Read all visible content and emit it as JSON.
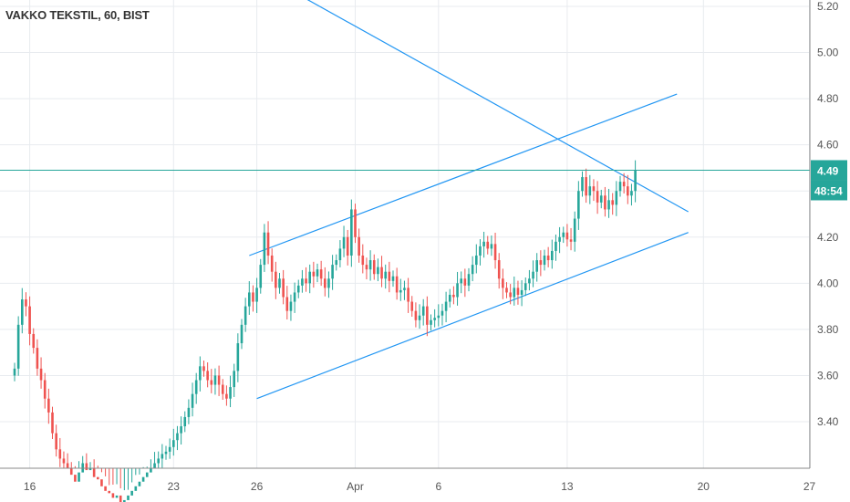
{
  "chart_data": {
    "type": "candlestick",
    "title": "VAKKO TEKSTIL, 60, BIST",
    "ylim": [
      3.2,
      5.22
    ],
    "price_axis": {
      "ticks": [
        "5.20",
        "5.00",
        "4.80",
        "4.60",
        "4.20",
        "4.00",
        "3.80",
        "3.60",
        "3.40"
      ],
      "tick_values": [
        5.2,
        5.0,
        4.8,
        4.6,
        4.2,
        4.0,
        3.8,
        3.6,
        3.4
      ]
    },
    "time_axis": {
      "ticks": [
        "16",
        "23",
        "26",
        "Apr",
        "6",
        "13",
        "20",
        "27"
      ],
      "tick_index": [
        4,
        42,
        64,
        90,
        112,
        146,
        182,
        210
      ]
    },
    "last_price": {
      "label": "4.49",
      "value": 4.49
    },
    "countdown": {
      "label": "48:54"
    },
    "colors": {
      "up": "#26a69a",
      "down": "#ef5350",
      "trendline": "#2196f3",
      "grid": "#e8ebef",
      "price_line": "#26a69a"
    },
    "closes": [
      3.63,
      3.82,
      3.93,
      3.9,
      3.78,
      3.72,
      3.63,
      3.58,
      3.5,
      3.44,
      3.35,
      3.28,
      3.24,
      3.22,
      3.2,
      3.17,
      3.14,
      3.18,
      3.22,
      3.19,
      3.2,
      3.16,
      3.15,
      3.12,
      3.1,
      3.09,
      3.07,
      3.08,
      3.05,
      3.06,
      3.08,
      3.1,
      3.12,
      3.14,
      3.16,
      3.18,
      3.2,
      3.22,
      3.24,
      3.26,
      3.27,
      3.29,
      3.32,
      3.35,
      3.38,
      3.42,
      3.46,
      3.52,
      3.58,
      3.64,
      3.62,
      3.58,
      3.56,
      3.6,
      3.56,
      3.52,
      3.5,
      3.55,
      3.62,
      3.74,
      3.82,
      3.9,
      3.96,
      3.92,
      3.98,
      4.08,
      4.22,
      4.12,
      4.05,
      3.98,
      4.02,
      3.94,
      3.88,
      3.92,
      3.96,
      3.99,
      4.02,
      4.0,
      4.05,
      4.03,
      4.06,
      4.02,
      3.98,
      4.02,
      4.08,
      4.1,
      4.15,
      4.2,
      4.12,
      4.32,
      4.2,
      4.12,
      4.08,
      4.06,
      4.1,
      4.04,
      4.07,
      4.02,
      4.05,
      4.01,
      4.03,
      3.96,
      3.97,
      3.98,
      3.92,
      3.88,
      3.84,
      3.86,
      3.9,
      3.82,
      3.84,
      3.85,
      3.86,
      3.88,
      3.92,
      3.95,
      3.94,
      4.0,
      4.02,
      3.99,
      4.04,
      4.08,
      4.12,
      4.16,
      4.18,
      4.15,
      4.17,
      4.1,
      4.02,
      3.98,
      3.96,
      3.94,
      3.98,
      3.95,
      3.97,
      4.0,
      4.02,
      4.05,
      4.1,
      4.08,
      4.12,
      4.1,
      4.14,
      4.18,
      4.2,
      4.22,
      4.19,
      4.18,
      4.28,
      4.4,
      4.46,
      4.38,
      4.42,
      4.4,
      4.35,
      4.38,
      4.32,
      4.36,
      4.34,
      4.4,
      4.44,
      4.42,
      4.38,
      4.4,
      4.49
    ],
    "trendlines": [
      {
        "from": {
          "i": 62,
          "y": 4.12
        },
        "to": {
          "i": 175,
          "y": 4.82
        }
      },
      {
        "from": {
          "i": 64,
          "y": 3.5
        },
        "to": {
          "i": 178,
          "y": 4.22
        }
      },
      {
        "from": {
          "i": 62,
          "y": 5.37
        },
        "to": {
          "i": 178,
          "y": 4.31
        }
      }
    ]
  }
}
